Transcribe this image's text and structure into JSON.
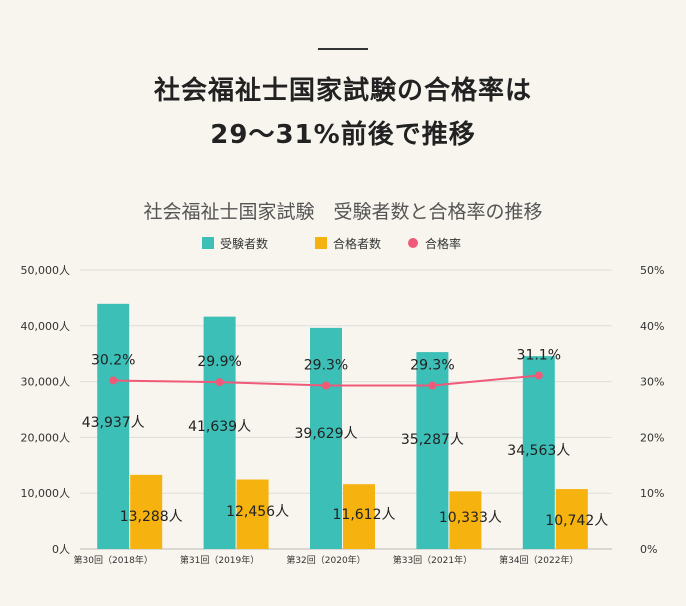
{
  "headline": {
    "line1": "社会福祉士国家試験の合格率は",
    "line2": "29～31%前後で推移"
  },
  "chart_data": {
    "type": "bar",
    "title": "社会福祉士国家試験　受験者数と合格率の推移",
    "categories": [
      "第30回（2018年）",
      "第31回（2019年）",
      "第32回（2020年）",
      "第33回（2021年）",
      "第34回（2022年）"
    ],
    "series": [
      {
        "name": "受験者数",
        "type": "bar",
        "axis": "left",
        "color": "#3cbfb7",
        "values": [
          43937,
          41639,
          39629,
          35287,
          34563
        ],
        "labels": [
          "43,937人",
          "41,639人",
          "39,629人",
          "35,287人",
          "34,563人"
        ]
      },
      {
        "name": "合格者数",
        "type": "bar",
        "axis": "left",
        "color": "#f6b20e",
        "values": [
          13288,
          12456,
          11612,
          10333,
          10742
        ],
        "labels": [
          "13,288人",
          "12,456人",
          "11,612人",
          "10,333人",
          "10,742人"
        ]
      },
      {
        "name": "合格率",
        "type": "line",
        "axis": "right",
        "color": "#ef5a78",
        "values": [
          30.2,
          29.9,
          29.3,
          29.3,
          31.1
        ],
        "labels": [
          "30.2%",
          "29.9%",
          "29.3%",
          "29.3%",
          "31.1%"
        ]
      }
    ],
    "y_left": {
      "ylim": [
        0,
        50000
      ],
      "ticks": [
        "0人",
        "10,000人",
        "20,000人",
        "30,000人",
        "40,000人",
        "50,000人"
      ]
    },
    "y_right": {
      "ylim": [
        0,
        50
      ],
      "ticks": [
        "0%",
        "10%",
        "20%",
        "30%",
        "40%",
        "50%"
      ]
    },
    "grid": true,
    "legend_position": "top-center"
  }
}
